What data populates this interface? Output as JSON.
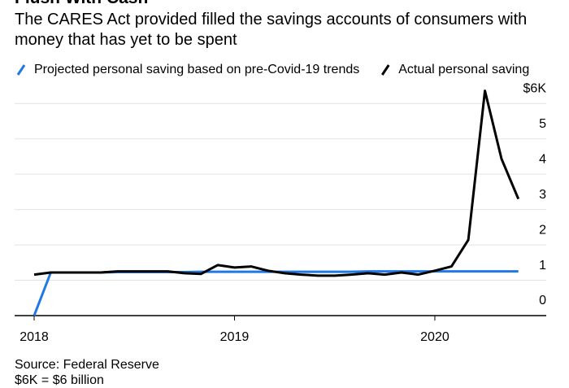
{
  "chart_data": {
    "type": "line",
    "title": "Flush With Cash",
    "subtitle": "The CARES Act provided filled the savings accounts of consumers with money that has yet to be spent",
    "source": "Source: Federal Reserve",
    "note": "$6K = $6 billion",
    "x": [
      2018,
      2018.083,
      2018.167,
      2018.25,
      2018.333,
      2018.417,
      2018.5,
      2018.583,
      2018.667,
      2018.75,
      2018.833,
      2018.917,
      2019,
      2019.083,
      2019.167,
      2019.25,
      2019.333,
      2019.417,
      2019.5,
      2019.583,
      2019.667,
      2019.75,
      2019.833,
      2019.917,
      2020,
      2020.083,
      2020.167,
      2020.25,
      2020.333,
      2020.417
    ],
    "series": [
      {
        "name": "Projected personal saving based on pre-Covid-19 trends",
        "color": "#1f78e6",
        "values": [
          0,
          1.22,
          1.22,
          1.22,
          1.22,
          1.23,
          1.23,
          1.23,
          1.23,
          1.23,
          1.24,
          1.24,
          1.24,
          1.24,
          1.24,
          1.24,
          1.24,
          1.24,
          1.24,
          1.24,
          1.25,
          1.25,
          1.25,
          1.25,
          1.25,
          1.25,
          1.25,
          1.25,
          1.25,
          1.25
        ]
      },
      {
        "name": "Actual personal saving",
        "color": "#000000",
        "values": [
          1.16,
          1.22,
          1.22,
          1.22,
          1.22,
          1.25,
          1.25,
          1.25,
          1.25,
          1.2,
          1.18,
          1.43,
          1.36,
          1.39,
          1.27,
          1.2,
          1.16,
          1.13,
          1.13,
          1.16,
          1.2,
          1.16,
          1.22,
          1.16,
          1.27,
          1.39,
          2.14,
          6.36,
          4.43,
          3.3
        ]
      }
    ],
    "xlim": [
      2018,
      2020.556
    ],
    "xticks": [
      2018,
      2019,
      2020
    ],
    "ylim": [
      0,
      6.5
    ],
    "yticks": [
      0,
      1,
      2,
      3,
      4,
      5,
      {
        "value": 6,
        "label": "$6K"
      }
    ],
    "grid": true
  }
}
